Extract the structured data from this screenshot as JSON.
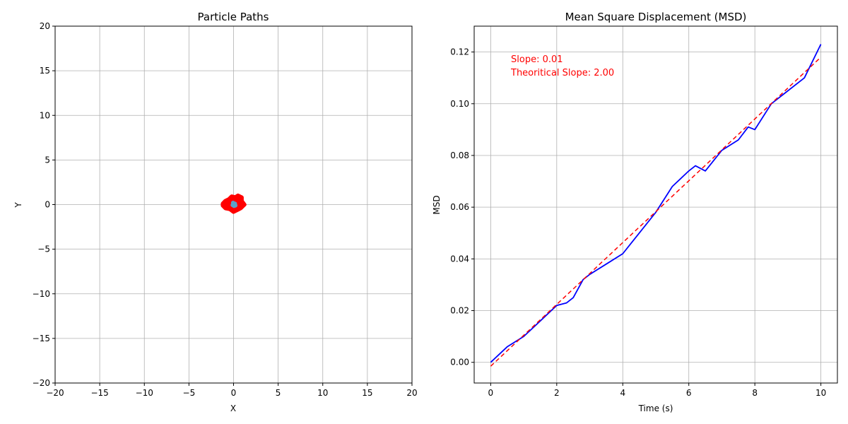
{
  "colors": {
    "path_fill": "#ff0000",
    "path_center": "#5ba3c9",
    "msd_line": "#0000ff",
    "fit_line": "#ff0000",
    "annotation": "#ff0000",
    "grid": "#b0b0b0"
  },
  "chart_data": [
    {
      "type": "scatter",
      "title": "Particle Paths",
      "xlabel": "X",
      "ylabel": "Y",
      "xlim": [
        -20,
        20
      ],
      "ylim": [
        -20,
        20
      ],
      "xticks": [
        -20,
        -15,
        -10,
        -5,
        0,
        5,
        10,
        15,
        20
      ],
      "yticks": [
        -20,
        -15,
        -10,
        -5,
        0,
        5,
        10,
        15,
        20
      ],
      "xtick_labels": [
        "−20",
        "−15",
        "−10",
        "−5",
        "0",
        "5",
        "10",
        "15",
        "20"
      ],
      "ytick_labels": [
        "−20",
        "−15",
        "−10",
        "−5",
        "0",
        "5",
        "10",
        "15",
        "20"
      ],
      "grid": true,
      "cluster": {
        "center": [
          0,
          0
        ],
        "outline": [
          [
            -1.2,
            0.1
          ],
          [
            -0.9,
            0.4
          ],
          [
            -0.5,
            0.6
          ],
          [
            -0.2,
            0.9
          ],
          [
            0.2,
            0.8
          ],
          [
            0.5,
            1.0
          ],
          [
            0.9,
            0.8
          ],
          [
            0.9,
            0.4
          ],
          [
            1.2,
            0.0
          ],
          [
            0.8,
            -0.4
          ],
          [
            0.4,
            -0.6
          ],
          [
            0.0,
            -0.8
          ],
          [
            -0.4,
            -0.5
          ],
          [
            -0.9,
            -0.4
          ],
          [
            -1.2,
            -0.1
          ]
        ],
        "inner_points": [
          [
            0.0,
            0.0
          ],
          [
            0.15,
            0.1
          ],
          [
            -0.1,
            -0.05
          ],
          [
            0.05,
            -0.15
          ],
          [
            -0.05,
            0.2
          ],
          [
            0.2,
            -0.1
          ]
        ]
      }
    },
    {
      "type": "line",
      "title": "Mean Square Displacement (MSD)",
      "xlabel": "Time (s)",
      "ylabel": "MSD",
      "xlim": [
        -0.5,
        10.5
      ],
      "ylim": [
        -0.008,
        0.13
      ],
      "xticks": [
        0,
        2,
        4,
        6,
        8,
        10
      ],
      "yticks": [
        0.0,
        0.02,
        0.04,
        0.06,
        0.08,
        0.1,
        0.12
      ],
      "xtick_labels": [
        "0",
        "2",
        "4",
        "6",
        "8",
        "10"
      ],
      "ytick_labels": [
        "0.00",
        "0.02",
        "0.04",
        "0.06",
        "0.08",
        "0.10",
        "0.12"
      ],
      "grid": true,
      "series": [
        {
          "x": [
            0,
            0.5,
            1,
            1.5,
            2,
            2.3,
            2.5,
            2.8,
            3,
            3.5,
            4,
            4.5,
            5,
            5.5,
            6,
            6.2,
            6.5,
            7,
            7.5,
            7.8,
            8,
            8.5,
            9,
            9.5,
            10
          ],
          "y": [
            0.0,
            0.006,
            0.01,
            0.016,
            0.022,
            0.023,
            0.025,
            0.032,
            0.034,
            0.038,
            0.042,
            0.05,
            0.058,
            0.068,
            0.074,
            0.076,
            0.074,
            0.082,
            0.086,
            0.091,
            0.09,
            0.1,
            0.105,
            0.11,
            0.123
          ]
        },
        {
          "style": "dashed",
          "x": [
            0,
            10
          ],
          "y": [
            -0.0015,
            0.118
          ]
        }
      ],
      "annotations": [
        {
          "text": "Slope: 0.01"
        },
        {
          "text": "Theoritical Slope: 2.00"
        }
      ]
    }
  ]
}
